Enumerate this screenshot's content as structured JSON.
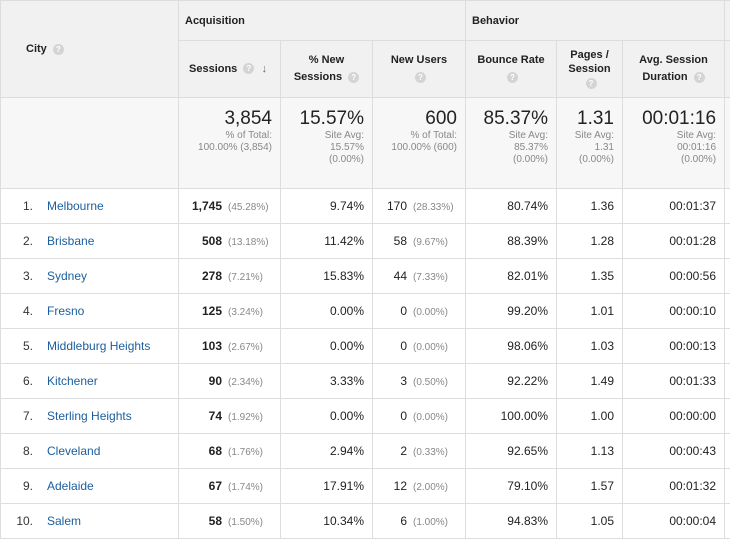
{
  "header": {
    "city": "City",
    "acquisition": "Acquisition",
    "behavior": "Behavior",
    "sessions": "Sessions",
    "pct_new_sessions": "% New Sessions",
    "new_users": "New Users",
    "bounce_rate": "Bounce Rate",
    "pages_session": "Pages / Session",
    "avg_duration": "Avg. Session Duration",
    "help_glyph": "?",
    "sort_glyph": "↓"
  },
  "totals": {
    "sessions": {
      "value": "3,854",
      "l1": "% of Total:",
      "l2": "100.00% (3,854)"
    },
    "pct_new": {
      "value": "15.57%",
      "l1": "Site Avg:",
      "l2": "15.57%",
      "l3": "(0.00%)"
    },
    "new_users": {
      "value": "600",
      "l1": "% of Total:",
      "l2": "100.00% (600)"
    },
    "bounce": {
      "value": "85.37%",
      "l1": "Site Avg:",
      "l2": "85.37%",
      "l3": "(0.00%)"
    },
    "pages": {
      "value": "1.31",
      "l1": "Site Avg:",
      "l2": "1.31",
      "l3": "(0.00%)"
    },
    "duration": {
      "value": "00:01:16",
      "l1": "Site Avg:",
      "l2": "00:01:16",
      "l3": "(0.00%)"
    }
  },
  "rows": [
    {
      "num": "1.",
      "city": "Melbourne",
      "sessions": "1,745",
      "sess_pct": "(45.28%)",
      "pct_new": "9.74%",
      "new_users": "170",
      "nu_pct": "(28.33%)",
      "bounce": "80.74%",
      "pages": "1.36",
      "duration": "00:01:37"
    },
    {
      "num": "2.",
      "city": "Brisbane",
      "sessions": "508",
      "sess_pct": "(13.18%)",
      "pct_new": "11.42%",
      "new_users": "58",
      "nu_pct": "(9.67%)",
      "bounce": "88.39%",
      "pages": "1.28",
      "duration": "00:01:28"
    },
    {
      "num": "3.",
      "city": "Sydney",
      "sessions": "278",
      "sess_pct": "(7.21%)",
      "pct_new": "15.83%",
      "new_users": "44",
      "nu_pct": "(7.33%)",
      "bounce": "82.01%",
      "pages": "1.35",
      "duration": "00:00:56"
    },
    {
      "num": "4.",
      "city": "Fresno",
      "sessions": "125",
      "sess_pct": "(3.24%)",
      "pct_new": "0.00%",
      "new_users": "0",
      "nu_pct": "(0.00%)",
      "bounce": "99.20%",
      "pages": "1.01",
      "duration": "00:00:10"
    },
    {
      "num": "5.",
      "city": "Middleburg Heights",
      "sessions": "103",
      "sess_pct": "(2.67%)",
      "pct_new": "0.00%",
      "new_users": "0",
      "nu_pct": "(0.00%)",
      "bounce": "98.06%",
      "pages": "1.03",
      "duration": "00:00:13"
    },
    {
      "num": "6.",
      "city": "Kitchener",
      "sessions": "90",
      "sess_pct": "(2.34%)",
      "pct_new": "3.33%",
      "new_users": "3",
      "nu_pct": "(0.50%)",
      "bounce": "92.22%",
      "pages": "1.49",
      "duration": "00:01:33"
    },
    {
      "num": "7.",
      "city": "Sterling Heights",
      "sessions": "74",
      "sess_pct": "(1.92%)",
      "pct_new": "0.00%",
      "new_users": "0",
      "nu_pct": "(0.00%)",
      "bounce": "100.00%",
      "pages": "1.00",
      "duration": "00:00:00"
    },
    {
      "num": "8.",
      "city": "Cleveland",
      "sessions": "68",
      "sess_pct": "(1.76%)",
      "pct_new": "2.94%",
      "new_users": "2",
      "nu_pct": "(0.33%)",
      "bounce": "92.65%",
      "pages": "1.13",
      "duration": "00:00:43"
    },
    {
      "num": "9.",
      "city": "Adelaide",
      "sessions": "67",
      "sess_pct": "(1.74%)",
      "pct_new": "17.91%",
      "new_users": "12",
      "nu_pct": "(2.00%)",
      "bounce": "79.10%",
      "pages": "1.57",
      "duration": "00:01:32"
    },
    {
      "num": "10.",
      "city": "Salem",
      "sessions": "58",
      "sess_pct": "(1.50%)",
      "pct_new": "10.34%",
      "new_users": "6",
      "nu_pct": "(1.00%)",
      "bounce": "94.83%",
      "pages": "1.05",
      "duration": "00:00:04"
    }
  ]
}
